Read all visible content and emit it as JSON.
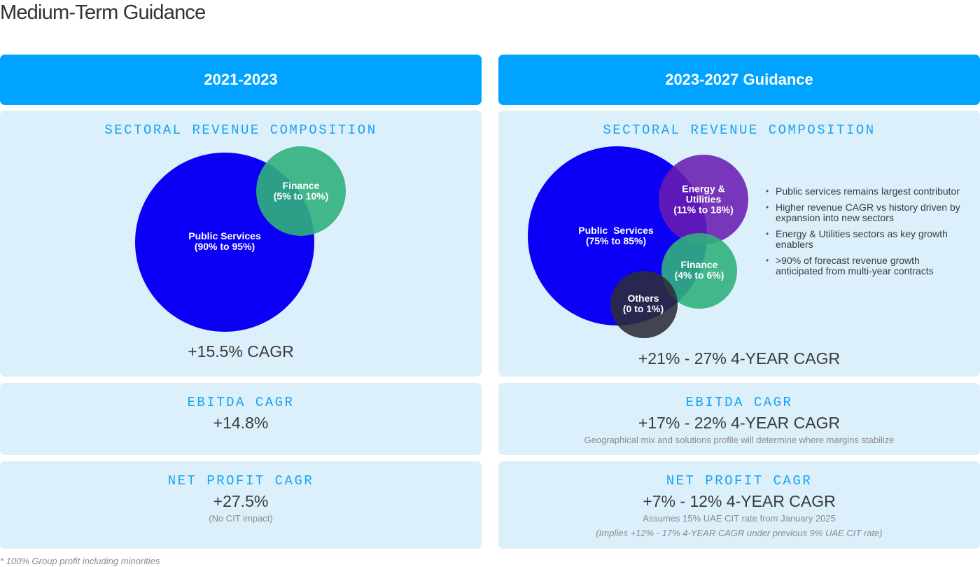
{
  "page": {
    "title": "Medium-Term Guidance",
    "footnote": "* 100% Group profit including minorities"
  },
  "left": {
    "header": "2021-2023",
    "revenue": {
      "label": "SECTORAL REVENUE COMPOSITION",
      "bubbles": [
        {
          "name": "Public Services",
          "range": "(90% to 95%)",
          "color": "#0b00f5"
        },
        {
          "name": "Finance",
          "range": "(5% to 10%)",
          "color": "#31b07c"
        }
      ],
      "cagr": "+15.5% CAGR"
    },
    "ebitda": {
      "label": "EBITDA CAGR",
      "value": "+14.8%"
    },
    "net_profit": {
      "label": "NET PROFIT CAGR",
      "value": "+27.5%",
      "note": "(No CIT impact)"
    }
  },
  "right": {
    "header": "2023-2027 Guidance",
    "revenue": {
      "label": "SECTORAL REVENUE COMPOSITION",
      "bubbles": [
        {
          "name": "Public  Services",
          "range": "(75% to 85%)",
          "color": "#0b00f5"
        },
        {
          "name": "Energy &",
          "name2": "Utilities",
          "range": "(11% to 18%)",
          "color": "#6a1bb0"
        },
        {
          "name": "Finance",
          "range": "(4% to 6%)",
          "color": "#31b07c"
        },
        {
          "name": "Others",
          "range": "(0 to 1%)",
          "color": "#2c2c38"
        }
      ],
      "bullets": [
        "Public services remains largest contributor",
        "Higher revenue CAGR vs history driven by expansion into new sectors",
        "Energy & Utilities sectors as key growth enablers",
        ">90% of forecast revenue growth anticipated from multi-year contracts"
      ],
      "cagr": "+21% - 27% 4-YEAR CAGR"
    },
    "ebitda": {
      "label": "EBITDA CAGR",
      "value": "+17% - 22% 4-YEAR CAGR",
      "note": "Geographical mix and solutions profile will determine where margins stabilize"
    },
    "net_profit": {
      "label": "NET PROFIT CAGR",
      "value": "+7% - 12% 4-YEAR CAGR",
      "note": "Assumes 15% UAE CIT rate from January 2025",
      "note2": "(Implies +12% - 17% 4-YEAR CAGR under previous 9% UAE CIT rate)"
    }
  }
}
